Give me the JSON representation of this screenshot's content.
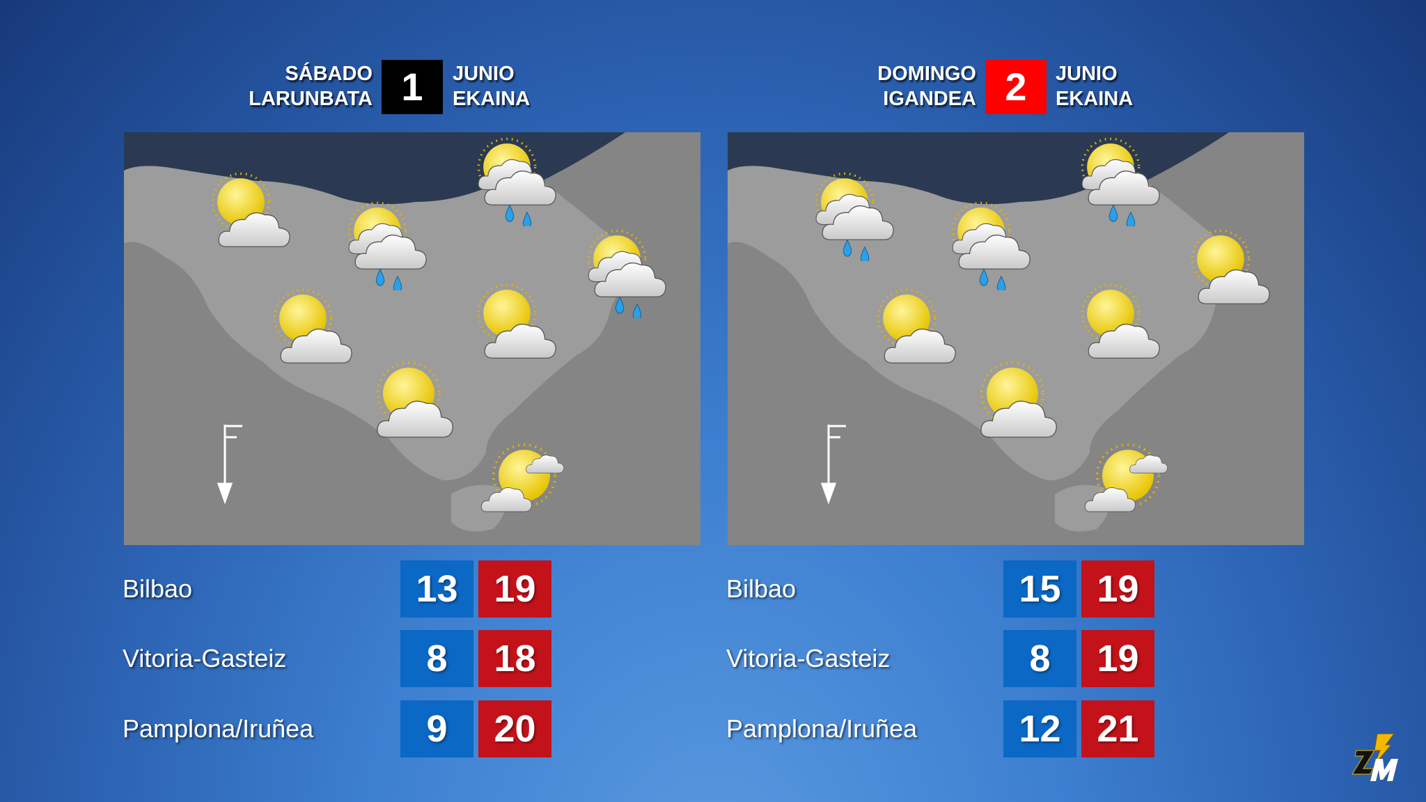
{
  "days": [
    {
      "day_es": "SÁBADO",
      "day_eu": "LARUNBATA",
      "date": "1",
      "month_es": "JUNIO",
      "month_eu": "EKAINA",
      "date_box_color": "#000000",
      "icons": [
        "partly-cloudy",
        "cloudy-rain",
        "cloudy-rain",
        "cloudy-rain",
        "partly-cloudy",
        "partly-cloudy",
        "mostly-sunny",
        "sunny-few-clouds"
      ],
      "cities": [
        {
          "name": "Bilbao",
          "min": "13",
          "max": "19"
        },
        {
          "name": "Vitoria-Gasteiz",
          "min": "8",
          "max": "18"
        },
        {
          "name": "Pamplona/Iruñea",
          "min": "9",
          "max": "20"
        }
      ]
    },
    {
      "day_es": "DOMINGO",
      "day_eu": "IGANDEA",
      "date": "2",
      "month_es": "JUNIO",
      "month_eu": "EKAINA",
      "date_box_color": "#ff0000",
      "icons": [
        "cloudy-rain",
        "cloudy-rain",
        "cloudy-rain",
        "partly-cloudy",
        "partly-cloudy",
        "partly-cloudy",
        "mostly-sunny",
        "sunny-few-clouds"
      ],
      "cities": [
        {
          "name": "Bilbao",
          "min": "15",
          "max": "19"
        },
        {
          "name": "Vitoria-Gasteiz",
          "min": "8",
          "max": "19"
        },
        {
          "name": "Pamplona/Iruñea",
          "min": "12",
          "max": "21"
        }
      ]
    }
  ],
  "colors": {
    "min_temp": "#0b68c4",
    "max_temp": "#c3121a",
    "sea": "#2b3a52",
    "land": "#9a9a9a"
  },
  "logo": {
    "text": "ZM"
  }
}
